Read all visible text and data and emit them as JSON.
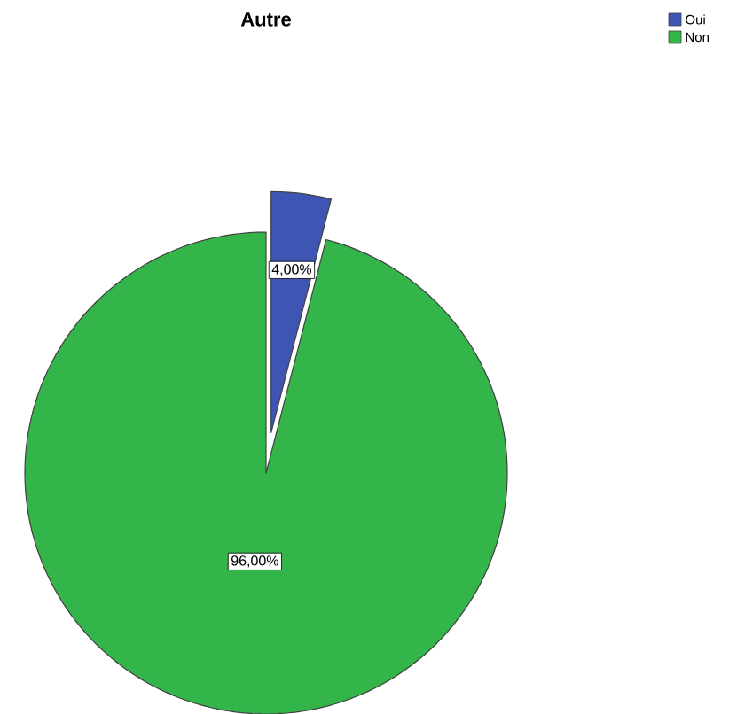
{
  "chart_data": {
    "type": "pie",
    "title": "Autre",
    "categories": [
      "Oui",
      "Non"
    ],
    "values": [
      4,
      96
    ],
    "colors": [
      "#3f55b4",
      "#33b54a"
    ],
    "value_labels": [
      "4,00%",
      "96,00%"
    ],
    "legend": "top right"
  }
}
